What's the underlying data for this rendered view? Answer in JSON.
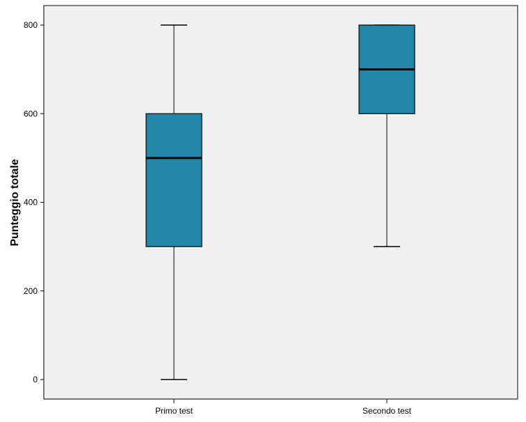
{
  "chart_data": {
    "type": "boxplot",
    "title": "",
    "xlabel": "",
    "ylabel": "Punteggio totale",
    "ylim": [
      -40,
      845
    ],
    "yticks": [
      0,
      200,
      400,
      600,
      800
    ],
    "tick_labels": [
      "0",
      "200",
      "400",
      "600",
      "800"
    ],
    "grid": false,
    "categories": [
      "Primo test",
      "Secondo test"
    ],
    "boxes": [
      {
        "category": "Primo test",
        "min": 0,
        "q1": 300,
        "median": 500,
        "q3": 600,
        "max": 800
      },
      {
        "category": "Secondo test",
        "min": 300,
        "q1": 600,
        "median": 700,
        "q3": 800,
        "max": 800
      }
    ],
    "colors": {
      "box_fill": "#2387aa",
      "plot_background": "#f0f0f0",
      "line": "#000000"
    }
  }
}
